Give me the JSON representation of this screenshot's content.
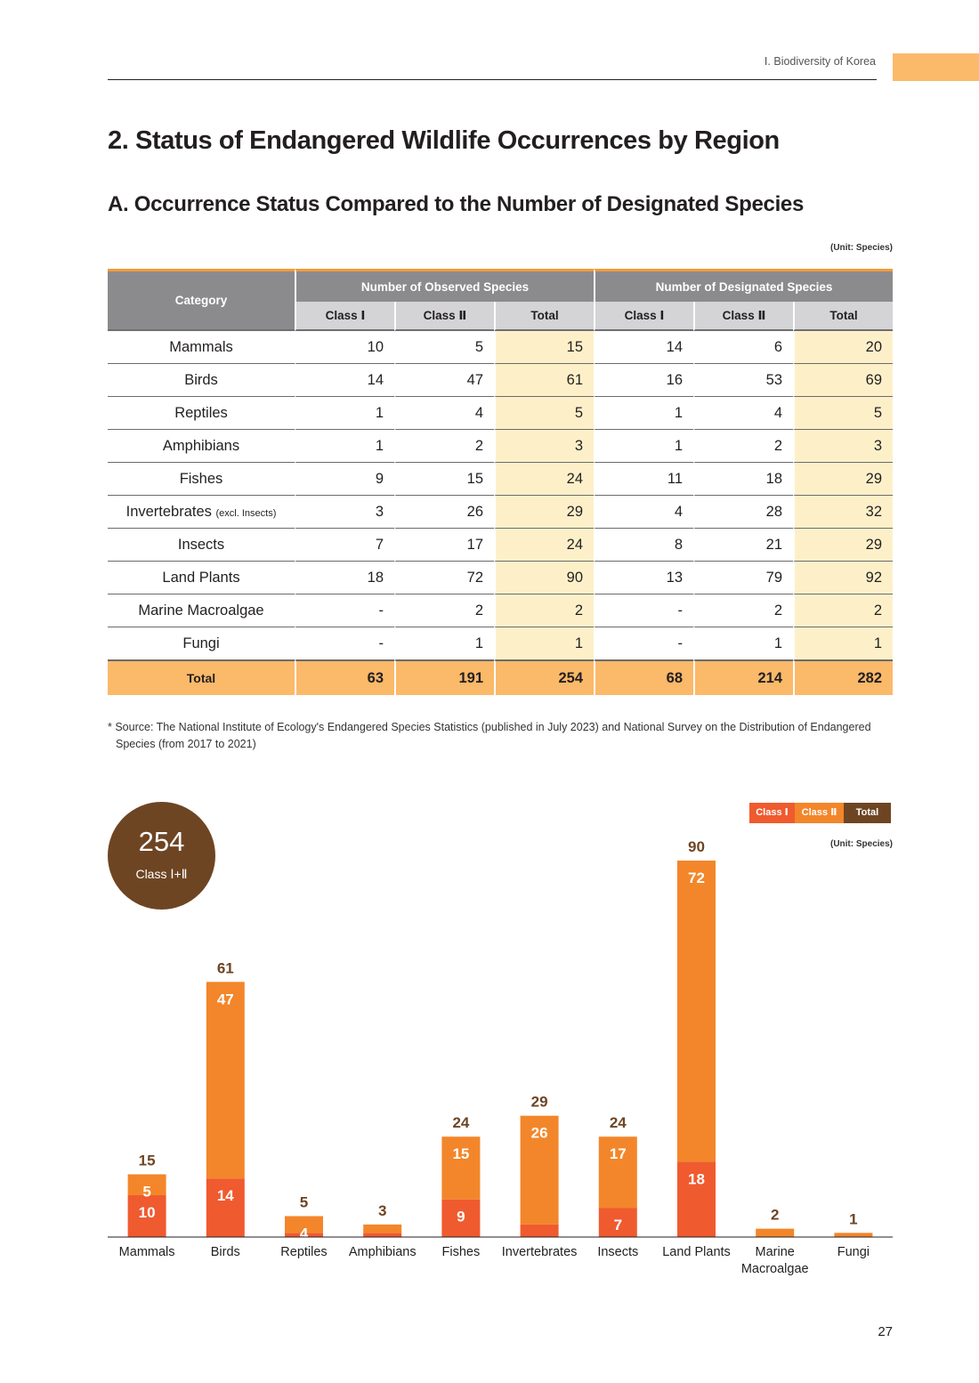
{
  "header": {
    "section_label": "Ⅰ. Biodiversity of Korea"
  },
  "title": "2. Status of Endangered Wildlife Occurrences by Region",
  "subtitle": "A. Occurrence Status Compared to the Number of Designated Species",
  "unit_label": "(Unit: Species)",
  "table": {
    "category_header": "Category",
    "observed_header": "Number of Observed Species",
    "designated_header": "Number of Designated Species",
    "sub_headers": [
      "Class Ⅰ",
      "Class Ⅱ",
      "Total",
      "Class Ⅰ",
      "Class Ⅱ",
      "Total"
    ],
    "rows": [
      {
        "category": "Mammals",
        "note": "",
        "values": [
          "10",
          "5",
          "15",
          "14",
          "6",
          "20"
        ]
      },
      {
        "category": "Birds",
        "note": "",
        "values": [
          "14",
          "47",
          "61",
          "16",
          "53",
          "69"
        ]
      },
      {
        "category": "Reptiles",
        "note": "",
        "values": [
          "1",
          "4",
          "5",
          "1",
          "4",
          "5"
        ]
      },
      {
        "category": "Amphibians",
        "note": "",
        "values": [
          "1",
          "2",
          "3",
          "1",
          "2",
          "3"
        ]
      },
      {
        "category": "Fishes",
        "note": "",
        "values": [
          "9",
          "15",
          "24",
          "11",
          "18",
          "29"
        ]
      },
      {
        "category": "Invertebrates",
        "note": "(excl. Insects)",
        "values": [
          "3",
          "26",
          "29",
          "4",
          "28",
          "32"
        ]
      },
      {
        "category": "Insects",
        "note": "",
        "values": [
          "7",
          "17",
          "24",
          "8",
          "21",
          "29"
        ]
      },
      {
        "category": "Land Plants",
        "note": "",
        "values": [
          "18",
          "72",
          "90",
          "13",
          "79",
          "92"
        ]
      },
      {
        "category": "Marine Macroalgae",
        "note": "",
        "values": [
          "-",
          "2",
          "2",
          "-",
          "2",
          "2"
        ]
      },
      {
        "category": "Fungi",
        "note": "",
        "values": [
          "-",
          "1",
          "1",
          "-",
          "1",
          "1"
        ]
      }
    ],
    "total_row": {
      "category": "Total",
      "values": [
        "63",
        "191",
        "254",
        "68",
        "214",
        "282"
      ]
    }
  },
  "source_note": "* Source: The National Institute of Ecology's Endangered Species Statistics (published in July 2023) and National Survey on the Distribution of Endangered Species (from 2017 to 2021)",
  "summary": {
    "total": "254",
    "label": "Class Ⅰ+Ⅱ"
  },
  "legend": {
    "class1": "Class Ⅰ",
    "class2": "Class Ⅱ",
    "total": "Total"
  },
  "colors": {
    "class1": "#f05a2f",
    "class2": "#f3862a",
    "total": "#6e4523",
    "highlight": "#fdf0c9",
    "accent": "#fbb96a"
  },
  "chart_data": {
    "type": "bar",
    "stacked": true,
    "title": "",
    "xlabel": "",
    "ylabel": "",
    "unit": "(Unit: Species)",
    "categories": [
      "Mammals",
      "Birds",
      "Reptiles",
      "Amphibians",
      "Fishes",
      "Invertebrates",
      "Insects",
      "Land Plants",
      "Marine Macroalgae",
      "Fungi"
    ],
    "series": [
      {
        "name": "Class Ⅰ",
        "values": [
          10,
          14,
          1,
          1,
          9,
          3,
          7,
          18,
          0,
          0
        ]
      },
      {
        "name": "Class Ⅱ",
        "values": [
          5,
          47,
          4,
          2,
          15,
          26,
          17,
          72,
          2,
          1
        ]
      }
    ],
    "totals": [
      15,
      61,
      5,
      3,
      24,
      29,
      24,
      90,
      2,
      1
    ],
    "ylim": [
      0,
      90
    ],
    "grid": false,
    "legend_position": "top-right"
  },
  "page_number": "27"
}
